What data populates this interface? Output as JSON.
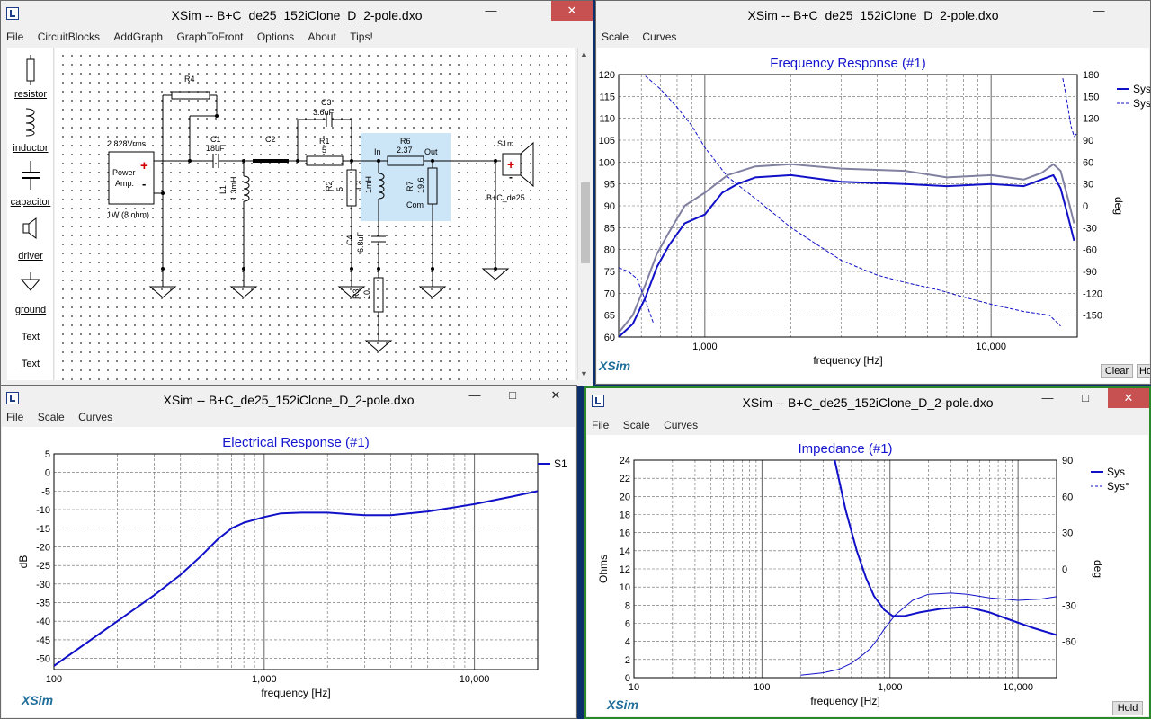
{
  "schematic_window": {
    "title": "XSim -- B+C_de25_152iClone_D_2-pole.dxo",
    "menu": [
      "File",
      "CircuitBlocks",
      "AddGraph",
      "GraphToFront",
      "Options",
      "About",
      "Tips!"
    ],
    "palette": [
      "resistor",
      "inductor",
      "capacitor",
      "driver",
      "ground",
      "Text",
      "Text"
    ],
    "labels": {
      "r4": "R4",
      "c3": "C3",
      "c3v": "3.6uF",
      "c1": "C1",
      "c1v": "18uF",
      "c2": "C2",
      "r1": "R1",
      "r1v": "5",
      "r6": "R6",
      "r6v": "2.37",
      "in": "In",
      "out": "Out",
      "s1m": "S1m",
      "amp_v": "2.828Vrms",
      "amp1": "Power",
      "amp2": "Amp.",
      "amp_p": "1W (8 ohm)",
      "l1": "L1",
      "l1v": "1.3mH",
      "r2": "R2",
      "r2v": "5",
      "l2": "L2",
      "l2v": "1mH",
      "r7": "R7",
      "r7v": "19.6",
      "com": "Com",
      "c4": "C4",
      "c4v": "6.8uF",
      "r3": "R3",
      "r3v": "10",
      "drv": "B+C_de25",
      "plus": "+",
      "minus": "-"
    }
  },
  "freq_window": {
    "title": "XSim -- B+C_de25_152iClone_D_2-pole.dxo",
    "menu": [
      "Scale",
      "Curves"
    ],
    "brand": "XSim",
    "clear": "Clear",
    "hold": "Ho",
    "legend": [
      "Sys",
      "Sys"
    ]
  },
  "elec_window": {
    "title": "XSim -- B+C_de25_152iClone_D_2-pole.dxo",
    "menu": [
      "File",
      "Scale",
      "Curves"
    ],
    "brand": "XSim",
    "legend": [
      "S1"
    ]
  },
  "imp_window": {
    "title": "XSim -- B+C_de25_152iClone_D_2-pole.dxo",
    "menu": [
      "File",
      "Scale",
      "Curves"
    ],
    "brand": "XSim",
    "hold": "Hold",
    "legend": [
      "Sys",
      "Sys°"
    ]
  },
  "colors": {
    "sys": "#1010c8",
    "sys2": "#8080a0",
    "title_blue": "#1515d0",
    "grid": "#666666"
  },
  "chart_data": [
    {
      "type": "line",
      "title": "Frequency Response (#1)",
      "xlabel": "frequency [Hz]",
      "ylabel": "",
      "y2label": "deg",
      "xscale": "log",
      "xlim": [
        500,
        20000
      ],
      "ylim": [
        60,
        120
      ],
      "y2lim": [
        -180,
        180
      ],
      "xticks": [
        1000,
        10000
      ],
      "xticklabels": [
        "1,000",
        "10,000"
      ],
      "yticks": [
        60,
        65,
        70,
        75,
        80,
        85,
        90,
        95,
        100,
        105,
        110,
        115,
        120
      ],
      "y2ticks": [
        -150,
        -120,
        -90,
        -60,
        -30,
        0,
        30,
        60,
        90,
        120,
        150,
        180
      ],
      "grid": true,
      "legend_position": "right",
      "series": [
        {
          "name": "Sys",
          "axis": "left",
          "style": "solid",
          "x": [
            500,
            560,
            620,
            680,
            750,
            850,
            1000,
            1150,
            1300,
            1500,
            2000,
            3000,
            5000,
            7000,
            10000,
            13000,
            15000,
            16500,
            17500,
            18500,
            19500
          ],
          "y": [
            60,
            63,
            69,
            76,
            81,
            86,
            88,
            93,
            95,
            96.5,
            97,
            95.5,
            95,
            94.5,
            95,
            94.5,
            96,
            97,
            94,
            88,
            82
          ]
        },
        {
          "name": "Sys",
          "axis": "left",
          "style": "solid-gray",
          "x": [
            500,
            560,
            620,
            680,
            750,
            850,
            1000,
            1200,
            1500,
            2000,
            3000,
            5000,
            7000,
            10000,
            13000,
            15000,
            16500,
            17500,
            18500,
            19500
          ],
          "y": [
            61,
            65,
            72,
            79,
            84,
            90,
            93,
            97,
            99,
            99.5,
            98.5,
            98,
            96.5,
            97,
            96,
            97.5,
            99.5,
            98,
            92,
            86
          ]
        },
        {
          "name": "Sys",
          "axis": "right",
          "style": "dashed",
          "x": [
            620,
            700,
            800,
            900,
            1000,
            1200,
            1500,
            2000,
            3000,
            4000,
            5000,
            6500,
            8000,
            10000,
            13000,
            16000,
            17500
          ],
          "y": [
            178,
            160,
            135,
            110,
            80,
            40,
            10,
            -30,
            -75,
            -95,
            -105,
            -115,
            -125,
            -135,
            -145,
            -150,
            -165
          ]
        },
        {
          "name": "Sys",
          "axis": "right",
          "style": "dashed",
          "x": [
            500,
            540,
            580,
            620,
            660
          ],
          "y": [
            -85,
            -90,
            -100,
            -130,
            -160
          ]
        },
        {
          "name": "Sys",
          "axis": "right",
          "style": "dashed",
          "x": [
            17800,
            18300,
            19000,
            19500,
            20000
          ],
          "y": [
            175,
            150,
            110,
            95,
            100
          ]
        }
      ]
    },
    {
      "type": "line",
      "title": "Electrical Response (#1)",
      "xlabel": "frequency [Hz]",
      "ylabel": "dB",
      "xscale": "log",
      "xlim": [
        100,
        20000
      ],
      "ylim": [
        -53,
        5
      ],
      "xticks": [
        100,
        1000,
        10000
      ],
      "xticklabels": [
        "100",
        "1,000",
        "10,000"
      ],
      "yticks": [
        -50,
        -45,
        -40,
        -35,
        -30,
        -25,
        -20,
        -15,
        -10,
        -5,
        0,
        5
      ],
      "grid": true,
      "legend_position": "right",
      "series": [
        {
          "name": "S1",
          "axis": "left",
          "style": "solid",
          "x": [
            100,
            200,
            300,
            400,
            500,
            600,
            700,
            800,
            1000,
            1200,
            1500,
            2000,
            3000,
            4000,
            6000,
            10000,
            15000,
            20000
          ],
          "y": [
            -52,
            -40,
            -33,
            -27.5,
            -22.5,
            -18,
            -15,
            -13.5,
            -12,
            -11,
            -10.8,
            -10.8,
            -11.5,
            -11.5,
            -10.5,
            -8.5,
            -6.5,
            -5
          ]
        }
      ]
    },
    {
      "type": "line",
      "title": "Impedance (#1)",
      "xlabel": "frequency [Hz]",
      "ylabel": "Ohms",
      "y2label": "deg",
      "xscale": "log",
      "xlim": [
        10,
        20000
      ],
      "ylim": [
        0,
        24
      ],
      "y2lim": [
        -90,
        90
      ],
      "xticks": [
        10,
        100,
        1000,
        10000
      ],
      "xticklabels": [
        "10",
        "100",
        "1,000",
        "10,000"
      ],
      "yticks": [
        0,
        2,
        4,
        6,
        8,
        10,
        12,
        14,
        16,
        18,
        20,
        22,
        24
      ],
      "y2ticks": [
        -60,
        -30,
        0,
        30,
        60,
        90
      ],
      "grid": true,
      "legend_position": "top-right",
      "series": [
        {
          "name": "Sys",
          "axis": "left",
          "style": "solid",
          "x": [
            370,
            450,
            550,
            650,
            750,
            900,
            1050,
            1300,
            1700,
            2500,
            4000,
            6000,
            9000,
            13000,
            20000
          ],
          "y": [
            24,
            18.5,
            14,
            11,
            9,
            7.5,
            6.8,
            6.8,
            7.2,
            7.6,
            7.8,
            7.2,
            6.3,
            5.5,
            4.7
          ]
        },
        {
          "name": "Sys°",
          "axis": "right",
          "style": "solid-thin",
          "x": [
            200,
            300,
            400,
            500,
            600,
            700,
            800,
            900,
            1100,
            1500,
            2000,
            3000,
            4000,
            6000,
            10000,
            15000,
            20000
          ],
          "y": [
            -88,
            -86,
            -83,
            -78,
            -72,
            -66,
            -58,
            -50,
            -38,
            -26,
            -21,
            -20,
            -21,
            -24,
            -26,
            -25,
            -23
          ]
        }
      ]
    }
  ]
}
